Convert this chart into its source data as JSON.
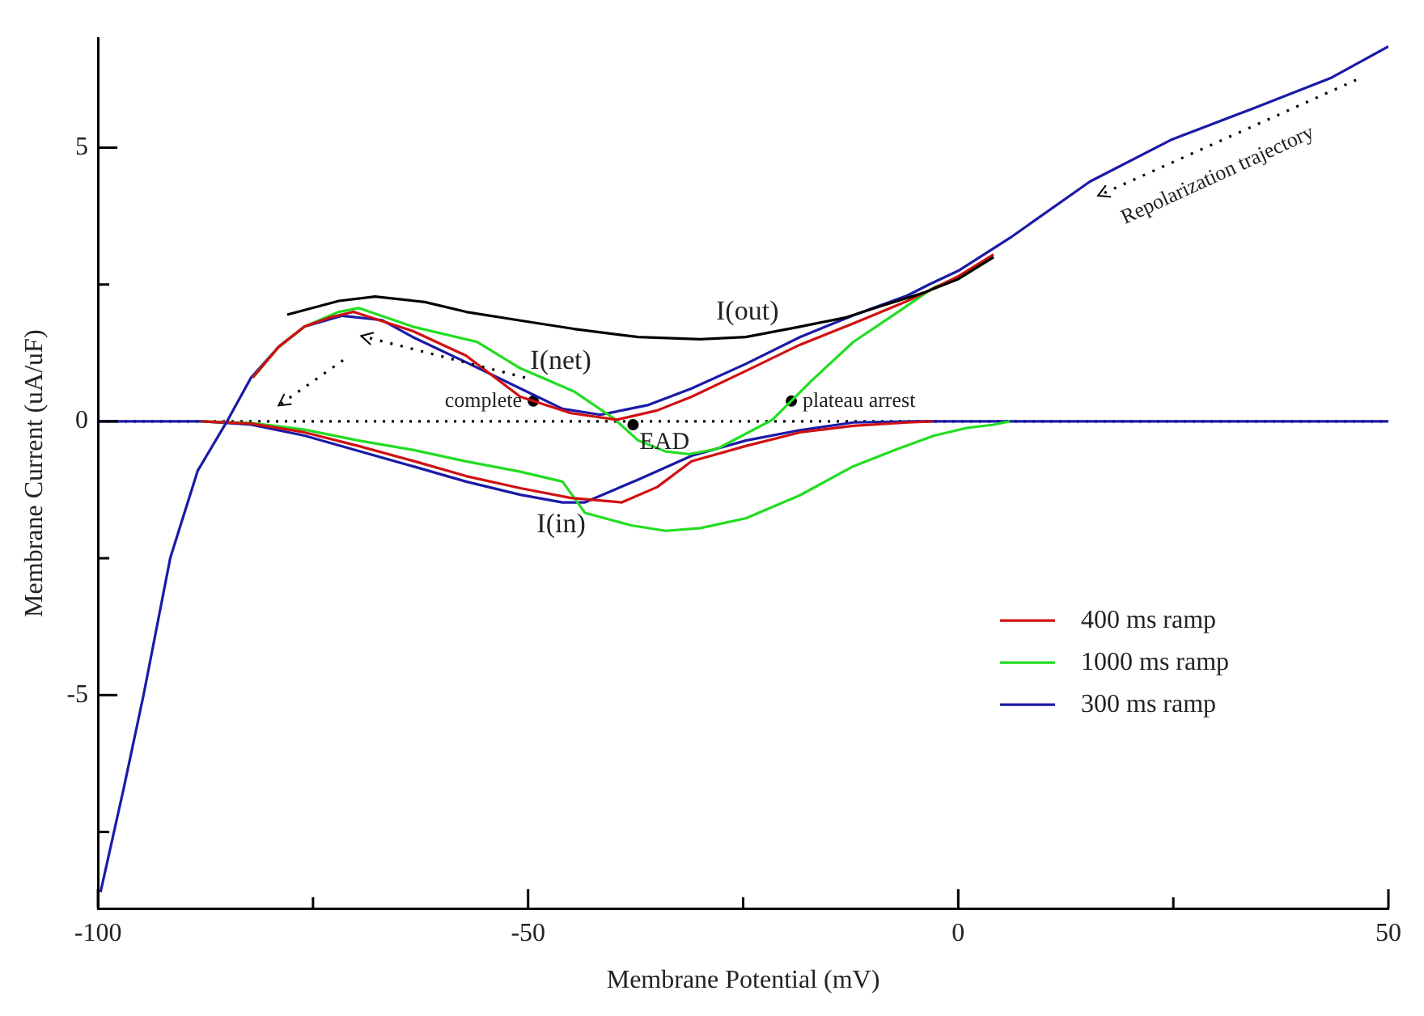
{
  "chart_data": {
    "type": "line",
    "xlabel": "Membrane Potential (mV)",
    "ylabel": "Membrane Current (uA/uF)",
    "xlim": [
      -100,
      50
    ],
    "ylim": [
      -8.9,
      7
    ],
    "xticks": [
      -100,
      {
        "value": -75,
        "label": null
      },
      -50,
      {
        "value": -25,
        "label": null
      },
      0,
      {
        "value": 25,
        "label": null
      },
      50
    ],
    "yticks": [
      {
        "value": -7.5,
        "label": null
      },
      -5,
      {
        "value": -2.5,
        "label": null
      },
      0,
      {
        "value": 2.5,
        "label": null
      },
      5
    ],
    "marker": "none",
    "legend": "bottom right",
    "ref_lines": [
      {
        "axis": "y",
        "value": 0,
        "color": "#000000",
        "line_style": "dotted"
      }
    ],
    "series": [
      {
        "color": "#000000",
        "x": [
          -78,
          -72,
          -67.8,
          -62,
          -57.2,
          -50,
          -44.7,
          -37.2,
          -30,
          -24.7,
          -18.4,
          -13,
          -9.1,
          -4,
          0,
          4.1
        ],
        "values": [
          1.95,
          2.2,
          2.28,
          2.18,
          2.0,
          1.82,
          1.69,
          1.54,
          1.5,
          1.54,
          1.73,
          1.9,
          2.1,
          2.35,
          2.6,
          3.0
        ]
      },
      {
        "name": "400 ms ramp",
        "color": "#d01010",
        "x": [
          -82,
          -79,
          -76,
          -73,
          -70.3,
          -63.4,
          -57.2,
          -50.9,
          -45,
          -39.7,
          -35,
          -31,
          -24.7,
          -18.4,
          -12,
          -5.9,
          0,
          4.1
        ],
        "values": [
          0.8,
          1.36,
          1.73,
          1.9,
          2.0,
          1.65,
          1.2,
          0.45,
          0.15,
          0.03,
          0.2,
          0.45,
          0.92,
          1.4,
          1.8,
          2.2,
          2.65,
          3.05
        ]
      },
      {
        "name": "1000 ms ramp",
        "color": "#22dd22",
        "x": [
          -82,
          -79,
          -76,
          -72,
          -69.7,
          -63.4,
          -55.9,
          -50.9,
          -44.7,
          -40,
          -37.2,
          -34,
          -31.3,
          -28,
          -21.6,
          -17,
          -12.2,
          -7,
          -2.8,
          0,
          4.1
        ],
        "values": [
          0.8,
          1.36,
          1.73,
          2.0,
          2.07,
          1.73,
          1.45,
          0.97,
          0.55,
          0.05,
          -0.35,
          -0.55,
          -0.6,
          -0.5,
          0.03,
          0.75,
          1.45,
          2.0,
          2.45,
          2.6,
          3.0
        ]
      },
      {
        "name": "300 ms ramp",
        "color": "#1a1aa8",
        "x": [
          -99.7,
          -97,
          -94.7,
          -91.6,
          -88.4,
          -85,
          -82.2,
          -79,
          -76,
          -71.6,
          -67,
          -63.4,
          -57.2,
          -50.9,
          -46,
          -41.6,
          -36,
          -31,
          -24.7,
          -18.4,
          -12,
          -5.9,
          -3.4,
          0,
          6,
          15.3,
          24.7,
          34,
          43.4,
          50
        ],
        "values": [
          -8.6,
          -6.7,
          -5.0,
          -2.5,
          -0.9,
          0,
          0.8,
          1.36,
          1.73,
          1.93,
          1.85,
          1.54,
          1.08,
          0.6,
          0.23,
          0.12,
          0.3,
          0.6,
          1.05,
          1.54,
          1.95,
          2.3,
          2.5,
          2.75,
          3.35,
          4.38,
          5.14,
          5.7,
          6.28,
          6.85
        ]
      },
      {
        "color": "#d01010",
        "x": [
          -88,
          -82.2,
          -76,
          -69.7,
          -63.4,
          -57.2,
          -50.9,
          -45,
          -39.1,
          -35,
          -31,
          -24.7,
          -18.4,
          -12.2,
          -5.9,
          -3
        ],
        "values": [
          0,
          -0.04,
          -0.2,
          -0.45,
          -0.72,
          -1.0,
          -1.22,
          -1.4,
          -1.48,
          -1.2,
          -0.73,
          -0.45,
          -0.2,
          -0.08,
          -0.02,
          0
        ]
      },
      {
        "color": "#22dd22",
        "x": [
          -88,
          -82.2,
          -76,
          -69.7,
          -63.4,
          -57.2,
          -50.9,
          -46,
          -43.4,
          -38,
          -34,
          -30,
          -24.7,
          -18.4,
          -12.2,
          -7,
          -2.8,
          1,
          4.1,
          6
        ],
        "values": [
          0,
          -0.03,
          -0.15,
          -0.35,
          -0.52,
          -0.73,
          -0.92,
          -1.1,
          -1.67,
          -1.9,
          -2.0,
          -1.95,
          -1.77,
          -1.35,
          -0.82,
          -0.5,
          -0.26,
          -0.12,
          -0.06,
          0
        ]
      },
      {
        "color": "#1a1aa8",
        "x": [
          -100,
          -88,
          -82.2,
          -76,
          -69.7,
          -63.4,
          -57.2,
          -50.9,
          -46,
          -43.4,
          -37,
          -31,
          -24.7,
          -18.4,
          -12.2,
          -5,
          50
        ],
        "values": [
          0,
          0,
          -0.06,
          -0.26,
          -0.54,
          -0.82,
          -1.1,
          -1.34,
          -1.48,
          -1.48,
          -1.05,
          -0.63,
          -0.35,
          -0.16,
          -0.02,
          0,
          0
        ]
      },
      {
        "type": "scatter",
        "marker": "circle",
        "color": "#000000",
        "x": [
          -49.4,
          -37.8,
          -19.4
        ],
        "values": [
          0.37,
          -0.06,
          0.37
        ]
      }
    ],
    "annotations": [
      "I(out)",
      "I(net)",
      "I(in)",
      {
        "text": "complete",
        "x": -49.4,
        "y": 0.37
      },
      {
        "text": "EAD",
        "x": -37.8,
        "y": -0.06
      },
      {
        "text": "plateau arrest",
        "x": -19.4,
        "y": 0.37
      },
      "Repolarization trajectory"
    ]
  }
}
